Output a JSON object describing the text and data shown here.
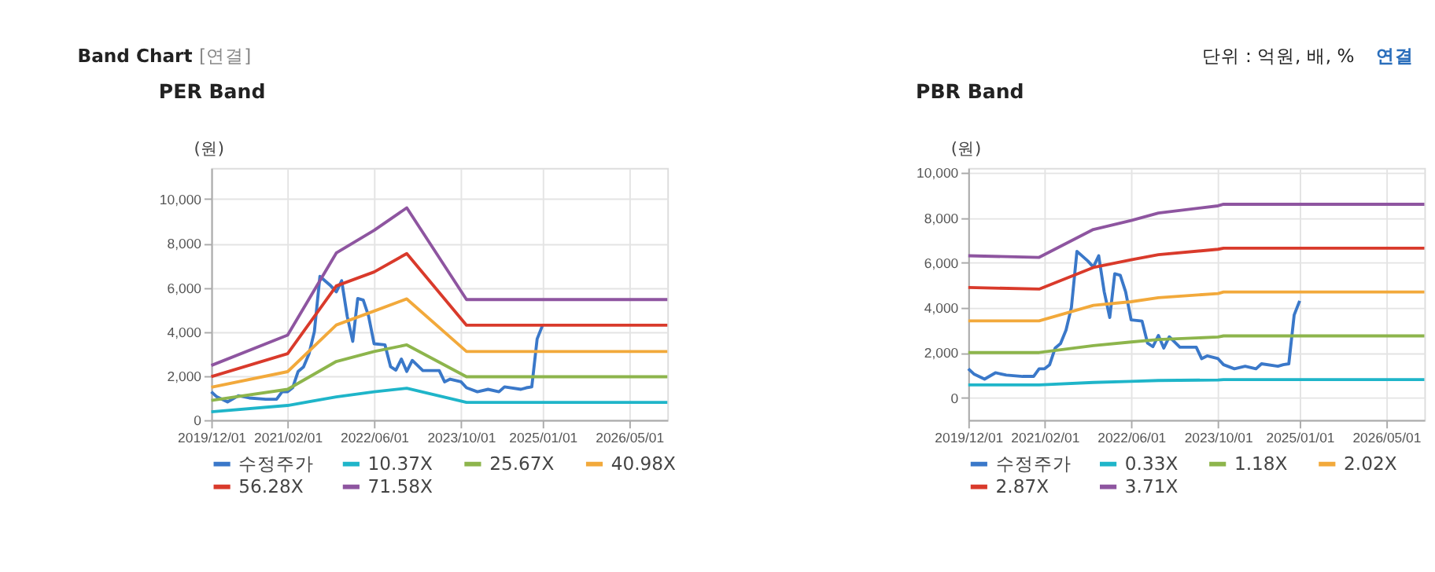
{
  "chart_data": [
    {
      "type": "line",
      "title": "PER Band",
      "ylabel": "(원)",
      "annotations": [
        "Band Chart",
        "[연결]",
        "단위 : 억원, 배, %",
        "연결"
      ],
      "xlim": [
        "2019-12-01",
        "2026-12-01"
      ],
      "xticks": [
        {
          "value": "2019-12-01",
          "label": "2019/12/01"
        },
        {
          "value": "2021-02-01",
          "label": "2021/02/01"
        },
        {
          "value": "2022-06-01",
          "label": "2022/06/01"
        },
        {
          "value": "2023-10-01",
          "label": "2023/10/01"
        },
        {
          "value": "2025-01-01",
          "label": "2025/01/01"
        },
        {
          "value": "2026-05-01",
          "label": "2026/05/01"
        }
      ],
      "ylim": [
        0,
        11400
      ],
      "yticks": [
        0,
        {
          "value": 2000,
          "label": "2,000"
        },
        {
          "value": 4000,
          "label": "4,000"
        },
        {
          "value": 6000,
          "label": "6,000"
        },
        {
          "value": 8000,
          "label": "8,000"
        },
        {
          "value": 10000,
          "label": "10,000"
        }
      ],
      "grid": true,
      "legend": "bottom",
      "marker": "none",
      "line_style": "solid",
      "series": [
        {
          "name": "수정주가",
          "color": "#3a78c9",
          "x": [
            "2019-12-01",
            "2020-01-01",
            "2020-03-01",
            "2020-05-01",
            "2020-07-01",
            "2020-10-01",
            "2020-12-01",
            "2021-01-01",
            "2021-02-01",
            "2021-03-01",
            "2021-04-01",
            "2021-05-01",
            "2021-06-01",
            "2021-07-01",
            "2021-08-01",
            "2021-10-01",
            "2021-11-01",
            "2021-12-01",
            "2022-01-01",
            "2022-02-01",
            "2022-03-01",
            "2022-04-01",
            "2022-05-01",
            "2022-06-01",
            "2022-08-01",
            "2022-09-01",
            "2022-10-01",
            "2022-11-01",
            "2022-12-01",
            "2023-01-01",
            "2023-03-01",
            "2023-06-01",
            "2023-07-01",
            "2023-08-01",
            "2023-10-01",
            "2023-11-01",
            "2024-01-01",
            "2024-03-01",
            "2024-05-01",
            "2024-06-01",
            "2024-09-01",
            "2024-10-01",
            "2024-11-01",
            "2024-12-01",
            "2025-01-01"
          ],
          "values": [
            1280,
            1050,
            820,
            1100,
            1000,
            940,
            940,
            1280,
            1280,
            1460,
            2200,
            2400,
            3000,
            4000,
            6500,
            6070,
            5800,
            6300,
            4700,
            3560,
            5500,
            5430,
            4700,
            3450,
            3400,
            2420,
            2260,
            2760,
            2200,
            2700,
            2240,
            2240,
            1730,
            1850,
            1730,
            1460,
            1280,
            1390,
            1280,
            1500,
            1390,
            1460,
            1500,
            3670,
            4300
          ]
        },
        {
          "name": "10.37X",
          "color": "#1fb5c9",
          "x": [
            "2019-12-01",
            "2021-02-01",
            "2021-11-01",
            "2022-06-01",
            "2022-12-01",
            "2023-11-01",
            "2026-12-01"
          ],
          "values": [
            370,
            660,
            1050,
            1280,
            1440,
            800,
            800
          ]
        },
        {
          "name": "25.67X",
          "color": "#8db54c",
          "x": [
            "2019-12-01",
            "2021-02-01",
            "2021-11-01",
            "2022-06-01",
            "2022-12-01",
            "2023-11-01",
            "2026-12-01"
          ],
          "values": [
            890,
            1390,
            2650,
            3100,
            3400,
            1960,
            1960
          ]
        },
        {
          "name": "40.98X",
          "color": "#f2a93b",
          "x": [
            "2019-12-01",
            "2021-02-01",
            "2021-11-01",
            "2022-06-01",
            "2022-12-01",
            "2023-11-01",
            "2026-12-01"
          ],
          "values": [
            1480,
            2190,
            4300,
            4930,
            5480,
            3100,
            3100
          ]
        },
        {
          "name": "56.28X",
          "color": "#d93a2b",
          "x": [
            "2019-12-01",
            "2021-02-01",
            "2021-11-01",
            "2022-06-01",
            "2022-12-01",
            "2023-11-01",
            "2026-12-01"
          ],
          "values": [
            1960,
            3000,
            6070,
            6700,
            7530,
            4290,
            4290
          ]
        },
        {
          "name": "71.58X",
          "color": "#8e55a0",
          "x": [
            "2019-12-01",
            "2021-02-01",
            "2021-11-01",
            "2022-06-01",
            "2022-12-01",
            "2023-11-01",
            "2026-12-01"
          ],
          "values": [
            2470,
            3840,
            7560,
            8580,
            9600,
            5450,
            5450
          ]
        }
      ]
    },
    {
      "type": "line",
      "title": "PBR Band",
      "ylabel": "(원)",
      "xlim": [
        "2019-12-01",
        "2026-12-01"
      ],
      "xticks": [
        {
          "value": "2019-12-01",
          "label": "2019/12/01"
        },
        {
          "value": "2021-02-01",
          "label": "2021/02/01"
        },
        {
          "value": "2022-06-01",
          "label": "2022/06/01"
        },
        {
          "value": "2023-10-01",
          "label": "2023/10/01"
        },
        {
          "value": "2025-01-01",
          "label": "2025/01/01"
        },
        {
          "value": "2026-05-01",
          "label": "2026/05/01"
        }
      ],
      "ylim": [
        -1000,
        10200
      ],
      "yticks": [
        0,
        {
          "value": 2000,
          "label": "2,000"
        },
        {
          "value": 4000,
          "label": "4,000"
        },
        {
          "value": 6000,
          "label": "6,000"
        },
        {
          "value": 8000,
          "label": "8,000"
        },
        {
          "value": 10000,
          "label": "10,000"
        }
      ],
      "grid": true,
      "legend": "bottom",
      "marker": "none",
      "line_style": "solid",
      "series": [
        {
          "name": "수정주가",
          "color": "#3a78c9",
          "x": [
            "2019-12-01",
            "2020-01-01",
            "2020-03-01",
            "2020-05-01",
            "2020-07-01",
            "2020-10-01",
            "2020-12-01",
            "2021-01-01",
            "2021-02-01",
            "2021-03-01",
            "2021-04-01",
            "2021-05-01",
            "2021-06-01",
            "2021-07-01",
            "2021-08-01",
            "2021-10-01",
            "2021-11-01",
            "2021-12-01",
            "2022-01-01",
            "2022-02-01",
            "2022-03-01",
            "2022-04-01",
            "2022-05-01",
            "2022-06-01",
            "2022-08-01",
            "2022-09-01",
            "2022-10-01",
            "2022-11-01",
            "2022-12-01",
            "2023-01-01",
            "2023-03-01",
            "2023-06-01",
            "2023-07-01",
            "2023-08-01",
            "2023-10-01",
            "2023-11-01",
            "2024-01-01",
            "2024-03-01",
            "2024-05-01",
            "2024-06-01",
            "2024-09-01",
            "2024-10-01",
            "2024-11-01",
            "2024-12-01",
            "2025-01-01"
          ],
          "values": [
            1280,
            1050,
            820,
            1100,
            1000,
            940,
            940,
            1280,
            1280,
            1460,
            2200,
            2400,
            3000,
            4000,
            6500,
            6070,
            5800,
            6300,
            4700,
            3560,
            5500,
            5430,
            4700,
            3450,
            3400,
            2420,
            2260,
            2760,
            2200,
            2700,
            2240,
            2240,
            1730,
            1850,
            1730,
            1460,
            1280,
            1390,
            1280,
            1500,
            1390,
            1460,
            1500,
            3670,
            4300
          ]
        },
        {
          "name": "0.33X",
          "color": "#1fb5c9",
          "x": [
            "2019-12-01",
            "2021-01-01",
            "2021-11-01",
            "2022-06-01",
            "2022-11-01",
            "2023-10-01",
            "2023-11-01",
            "2026-12-01"
          ],
          "values": [
            560,
            560,
            670,
            720,
            760,
            780,
            800,
            800
          ]
        },
        {
          "name": "1.18X",
          "color": "#8db54c",
          "x": [
            "2019-12-01",
            "2021-01-01",
            "2021-11-01",
            "2022-06-01",
            "2022-11-01",
            "2023-10-01",
            "2023-11-01",
            "2026-12-01"
          ],
          "values": [
            2000,
            2000,
            2310,
            2470,
            2580,
            2690,
            2740,
            2740
          ]
        },
        {
          "name": "2.02X",
          "color": "#f2a93b",
          "x": [
            "2019-12-01",
            "2021-01-01",
            "2021-11-01",
            "2022-06-01",
            "2022-11-01",
            "2023-10-01",
            "2023-11-01",
            "2026-12-01"
          ],
          "values": [
            3410,
            3410,
            4100,
            4260,
            4440,
            4620,
            4690,
            4690
          ]
        },
        {
          "name": "2.87X",
          "color": "#d93a2b",
          "x": [
            "2019-12-01",
            "2021-01-01",
            "2021-11-01",
            "2022-06-01",
            "2022-11-01",
            "2023-10-01",
            "2023-11-01",
            "2026-12-01"
          ],
          "values": [
            4890,
            4820,
            5780,
            6120,
            6350,
            6590,
            6640,
            6640
          ]
        },
        {
          "name": "3.71X",
          "color": "#8e55a0",
          "x": [
            "2019-12-01",
            "2021-01-01",
            "2021-11-01",
            "2022-06-01",
            "2022-11-01",
            "2023-10-01",
            "2023-11-01",
            "2026-12-01"
          ],
          "values": [
            6300,
            6230,
            7470,
            7870,
            8200,
            8520,
            8590,
            8590
          ]
        }
      ]
    }
  ]
}
